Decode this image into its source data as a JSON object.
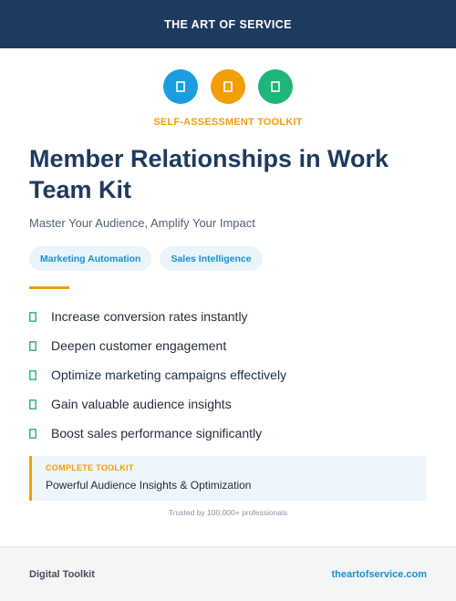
{
  "header": {
    "brand": "THE ART OF SERVICE"
  },
  "icons": [
    {
      "name": "rectangle-glyph-icon",
      "color": "#1a9ee0"
    },
    {
      "name": "rectangle-glyph-icon",
      "color": "#f29f05"
    },
    {
      "name": "rectangle-glyph-icon",
      "color": "#1fb57a"
    }
  ],
  "kicker": "SELF-ASSESSMENT TOOLKIT",
  "title": "Member Relationships in Work Team Kit",
  "subtitle": "Master Your Audience, Amplify Your Impact",
  "tags": [
    "Marketing Automation",
    "Sales Intelligence"
  ],
  "benefits": [
    "Increase conversion rates instantly",
    "Deepen customer engagement",
    "Optimize marketing campaigns effectively",
    "Gain valuable audience insights",
    "Boost sales performance significantly"
  ],
  "callout": {
    "kicker": "COMPLETE TOOLKIT",
    "text": "Powerful Audience Insights & Optimization"
  },
  "trust_line": "Trusted by 100,000+ professionals",
  "footer": {
    "left": "Digital Toolkit",
    "right": "theartofservice.com"
  },
  "colors": {
    "navy": "#1e3a5f",
    "orange": "#f29f05",
    "blue": "#1a8fcf",
    "green": "#1fb57a"
  }
}
